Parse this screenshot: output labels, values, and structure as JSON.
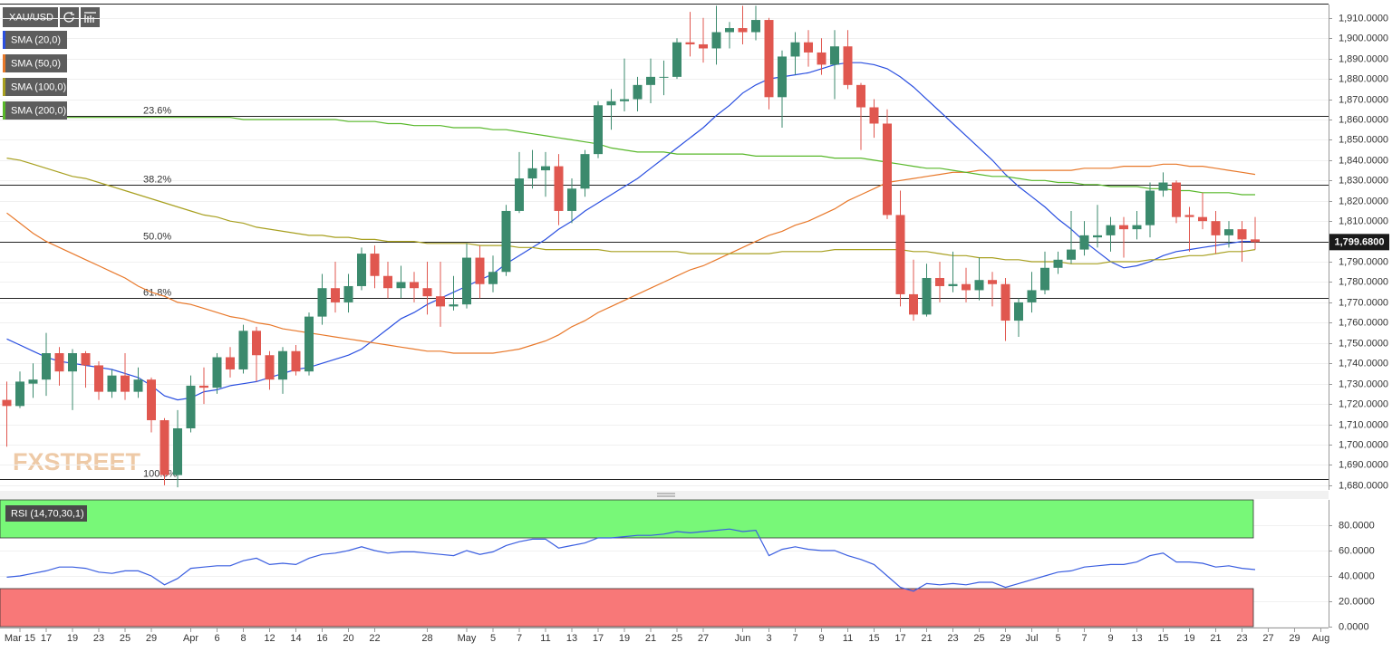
{
  "chart_data": [
    {
      "type": "candlestick",
      "title": "XAU/USD",
      "watermark": "FXSTREET",
      "up_color": "#3b8a6d",
      "down_color": "#e0574f",
      "grid": true,
      "ylim": [
        1677.7,
        1916.6
      ],
      "yticks": [
        {
          "value": 1680,
          "label": "1,680.0000"
        },
        {
          "value": 1690,
          "label": "1,690.0000"
        },
        {
          "value": 1700,
          "label": "1,700.0000"
        },
        {
          "value": 1710,
          "label": "1,710.0000"
        },
        {
          "value": 1720,
          "label": "1,720.0000"
        },
        {
          "value": 1730,
          "label": "1,730.0000"
        },
        {
          "value": 1740,
          "label": "1,740.0000"
        },
        {
          "value": 1750,
          "label": "1,750.0000"
        },
        {
          "value": 1760,
          "label": "1,760.0000"
        },
        {
          "value": 1770,
          "label": "1,770.0000"
        },
        {
          "value": 1780,
          "label": "1,780.0000"
        },
        {
          "value": 1790,
          "label": "1,790.0000"
        },
        {
          "value": 1800,
          "label": "1,800.0000"
        },
        {
          "value": 1810,
          "label": "1,810.0000"
        },
        {
          "value": 1820,
          "label": "1,820.0000"
        },
        {
          "value": 1830,
          "label": "1,830.0000"
        },
        {
          "value": 1840,
          "label": "1,840.0000"
        },
        {
          "value": 1850,
          "label": "1,850.0000"
        },
        {
          "value": 1860,
          "label": "1,860.0000"
        },
        {
          "value": 1870,
          "label": "1,870.0000"
        },
        {
          "value": 1880,
          "label": "1,880.0000"
        },
        {
          "value": 1890,
          "label": "1,890.0000"
        },
        {
          "value": 1900,
          "label": "1,900.0000"
        },
        {
          "value": 1910,
          "label": "1,910.0000"
        }
      ],
      "categories": [
        null,
        "Mar 15",
        null,
        "17",
        null,
        "19",
        null,
        "23",
        null,
        "25",
        null,
        "29",
        null,
        null,
        "Apr",
        null,
        "6",
        null,
        "8",
        null,
        "12",
        null,
        "14",
        null,
        "16",
        null,
        "20",
        null,
        "22",
        null,
        null,
        null,
        "28",
        null,
        null,
        "May",
        null,
        "5",
        null,
        "7",
        null,
        "11",
        null,
        "13",
        null,
        "17",
        null,
        "19",
        null,
        "21",
        null,
        "25",
        null,
        "27",
        null,
        null,
        "Jun",
        null,
        "3",
        null,
        "7",
        null,
        "9",
        null,
        "11",
        null,
        "15",
        null,
        "17",
        null,
        "21",
        null,
        "23",
        null,
        "25",
        null,
        "29",
        null,
        "Jul",
        null,
        "5",
        null,
        "7",
        null,
        "9",
        null,
        "13",
        null,
        "15",
        null,
        "19",
        null,
        "21",
        null,
        "23",
        null,
        "27",
        null,
        "29",
        null,
        "Aug"
      ],
      "open": [
        1722,
        1719,
        1730,
        1732,
        1745,
        1736,
        1745,
        1739,
        1726,
        1734,
        1726,
        1732,
        1712,
        1685,
        1708,
        1729,
        1728,
        1743,
        1737,
        1756,
        1744,
        1732,
        1746,
        1736,
        1763,
        1777,
        1770,
        1778,
        1794,
        1783,
        1777,
        1780,
        1777,
        1773,
        1768,
        1769,
        1792,
        1779,
        1785,
        1815,
        1831,
        1835,
        1837,
        1815,
        1826,
        1843,
        1867,
        1869,
        1870,
        1877,
        1881,
        1881,
        1898,
        1897,
        1895,
        1903,
        1905,
        1903,
        1909,
        1871,
        1891,
        1898,
        1893,
        1887,
        1896,
        1877,
        1866,
        1858,
        1813,
        1774,
        1764,
        1782,
        1778,
        1779,
        1776,
        1781,
        1779,
        1761,
        1770,
        1776,
        1787,
        1791,
        1796,
        1802,
        1803,
        1808,
        1806,
        1808,
        1825,
        1829,
        1813,
        1812,
        1810,
        1803,
        1806,
        1801,
        null,
        null,
        null,
        null,
        null
      ],
      "high": [
        1731,
        1736,
        1740,
        1755,
        1748,
        1747,
        1746,
        1741,
        1737,
        1745,
        1738,
        1733,
        1713,
        1717,
        1734,
        1738,
        1745,
        1748,
        1759,
        1758,
        1746,
        1748,
        1749,
        1765,
        1784,
        1790,
        1784,
        1797,
        1798,
        1790,
        1788,
        1785,
        1790,
        1790,
        1783,
        1799,
        1798,
        1793,
        1818,
        1844,
        1845,
        1844,
        1843,
        1831,
        1845,
        1869,
        1875,
        1890,
        1881,
        1890,
        1889,
        1900,
        1913,
        1910,
        1916,
        1908,
        1916,
        1916,
        1910,
        1894,
        1903,
        1904,
        1900,
        1904,
        1904,
        1878,
        1870,
        1865,
        1825,
        1791,
        1789,
        1790,
        1795,
        1787,
        1792,
        1785,
        1782,
        1772,
        1785,
        1795,
        1795,
        1815,
        1810,
        1818,
        1812,
        1812,
        1815,
        1829,
        1834,
        1830,
        1817,
        1824,
        1815,
        1810,
        1810,
        1812,
        null,
        null,
        null,
        null,
        null
      ],
      "low": [
        1699,
        1718,
        1723,
        1724,
        1729,
        1717,
        1728,
        1722,
        1723,
        1722,
        1723,
        1706,
        1680,
        1679,
        1706,
        1720,
        1725,
        1733,
        1735,
        1731,
        1727,
        1725,
        1734,
        1734,
        1759,
        1765,
        1765,
        1776,
        1777,
        1772,
        1772,
        1770,
        1764,
        1758,
        1766,
        1767,
        1772,
        1775,
        1783,
        1814,
        1826,
        1822,
        1808,
        1809,
        1822,
        1841,
        1855,
        1864,
        1864,
        1868,
        1872,
        1880,
        1891,
        1888,
        1887,
        1895,
        1897,
        1899,
        1865,
        1856,
        1882,
        1886,
        1882,
        1870,
        1875,
        1845,
        1851,
        1811,
        1768,
        1761,
        1763,
        1770,
        1775,
        1770,
        1771,
        1768,
        1751,
        1753,
        1765,
        1774,
        1784,
        1789,
        1793,
        1797,
        1795,
        1792,
        1801,
        1802,
        1822,
        1809,
        1795,
        1806,
        1794,
        1797,
        1790,
        1796,
        null,
        null,
        null,
        null,
        null
      ],
      "close": [
        1719,
        1731,
        1732,
        1745,
        1736,
        1745,
        1739,
        1726,
        1734,
        1726,
        1732,
        1712,
        1685,
        1708,
        1729,
        1728,
        1743,
        1737,
        1756,
        1744,
        1732,
        1746,
        1736,
        1763,
        1777,
        1770,
        1778,
        1794,
        1783,
        1777,
        1780,
        1777,
        1773,
        1768,
        1769,
        1792,
        1779,
        1785,
        1815,
        1831,
        1836,
        1837,
        1815,
        1826,
        1843,
        1867,
        1869,
        1870,
        1877,
        1881,
        1881,
        1898,
        1897,
        1895,
        1903,
        1905,
        1903,
        1909,
        1871,
        1891,
        1898,
        1893,
        1887,
        1896,
        1877,
        1866,
        1858,
        1813,
        1774,
        1764,
        1782,
        1778,
        1779,
        1776,
        1781,
        1779,
        1761,
        1770,
        1776,
        1787,
        1791,
        1796,
        1803,
        1803,
        1808,
        1806,
        1808,
        1825,
        1829,
        1812,
        1812,
        1810,
        1803,
        1806,
        1801,
        1799.68,
        null,
        null,
        null,
        null,
        null
      ],
      "series": [
        {
          "name": "SMA (20,0)",
          "color": "#2a4fe0",
          "values": [
            1752,
            1749,
            1746,
            1743,
            1741,
            1740,
            1739,
            1738,
            1737,
            1735,
            1733,
            1729,
            1724,
            1722,
            1723,
            1726,
            1727,
            1729,
            1730,
            1731,
            1733,
            1735,
            1737,
            1738,
            1740,
            1742,
            1744,
            1747,
            1752,
            1757,
            1762,
            1765,
            1769,
            1772,
            1775,
            1778,
            1781,
            1784,
            1789,
            1793,
            1797,
            1801,
            1806,
            1810,
            1815,
            1819,
            1823,
            1827,
            1831,
            1836,
            1841,
            1846,
            1851,
            1856,
            1862,
            1867,
            1873,
            1877,
            1880,
            1881,
            1882,
            1883,
            1885,
            1887,
            1888,
            1888,
            1887,
            1885,
            1881,
            1876,
            1870,
            1864,
            1858,
            1852,
            1846,
            1840,
            1833,
            1827,
            1822,
            1817,
            1811,
            1806,
            1800,
            1795,
            1790,
            1787,
            1788,
            1790,
            1793,
            1795,
            1796,
            1797,
            1798,
            1799,
            1800,
            1800,
            null,
            null,
            null,
            null,
            null
          ]
        },
        {
          "name": "SMA (50,0)",
          "color": "#e8782a",
          "values": [
            1814,
            1809,
            1804,
            1800,
            1797,
            1794,
            1791,
            1788,
            1785,
            1782,
            1778,
            1775,
            1773,
            1770,
            1769,
            1767,
            1765,
            1763,
            1762,
            1760,
            1759,
            1757,
            1756,
            1755,
            1754,
            1753,
            1752,
            1751,
            1750,
            1749,
            1748,
            1747,
            1746,
            1746,
            1745,
            1745,
            1745,
            1745,
            1746,
            1747,
            1749,
            1751,
            1754,
            1758,
            1761,
            1765,
            1768,
            1771,
            1774,
            1777,
            1780,
            1783,
            1786,
            1788,
            1791,
            1794,
            1797,
            1800,
            1803,
            1805,
            1808,
            1810,
            1813,
            1816,
            1820,
            1823,
            1826,
            1829,
            1830,
            1831,
            1832,
            1833,
            1834,
            1834,
            1835,
            1835,
            1835,
            1835,
            1835,
            1835,
            1835,
            1835,
            1836,
            1836,
            1836,
            1837,
            1837,
            1837,
            1838,
            1838,
            1837,
            1837,
            1836,
            1835,
            1834,
            1833,
            null,
            null,
            null,
            null,
            null
          ]
        },
        {
          "name": "SMA (100,0)",
          "color": "#a8a020",
          "values": [
            1841,
            1840,
            1838,
            1836,
            1834,
            1832,
            1831,
            1829,
            1827,
            1825,
            1823,
            1821,
            1819,
            1817,
            1815,
            1813,
            1812,
            1810,
            1809,
            1807,
            1806,
            1805,
            1804,
            1803,
            1803,
            1802,
            1802,
            1801,
            1801,
            1800,
            1800,
            1800,
            1799,
            1799,
            1799,
            1799,
            1798,
            1798,
            1798,
            1797,
            1797,
            1796,
            1796,
            1796,
            1796,
            1796,
            1795,
            1795,
            1795,
            1795,
            1795,
            1795,
            1794,
            1794,
            1794,
            1794,
            1794,
            1794,
            1794,
            1795,
            1795,
            1795,
            1795,
            1796,
            1796,
            1796,
            1796,
            1796,
            1796,
            1795,
            1795,
            1794,
            1793,
            1793,
            1792,
            1792,
            1791,
            1791,
            1790,
            1790,
            1790,
            1789,
            1789,
            1789,
            1790,
            1790,
            1790,
            1791,
            1791,
            1792,
            1793,
            1793,
            1794,
            1795,
            1795,
            1796,
            null,
            null,
            null,
            null,
            null
          ]
        },
        {
          "name": "SMA (200,0)",
          "color": "#58b82a",
          "values": [
            1861,
            1861,
            1861,
            1861,
            1861,
            1861,
            1861,
            1861,
            1861,
            1861,
            1861,
            1861,
            1861,
            1861,
            1861,
            1861,
            1861,
            1861,
            1860,
            1860,
            1860,
            1860,
            1860,
            1860,
            1860,
            1860,
            1859,
            1859,
            1859,
            1858,
            1858,
            1857,
            1857,
            1857,
            1856,
            1856,
            1856,
            1855,
            1855,
            1854,
            1853,
            1852,
            1851,
            1850,
            1849,
            1848,
            1846,
            1845,
            1844,
            1844,
            1844,
            1843,
            1843,
            1843,
            1843,
            1843,
            1843,
            1842,
            1842,
            1842,
            1842,
            1842,
            1842,
            1841,
            1841,
            1841,
            1840,
            1839,
            1838,
            1837,
            1836,
            1836,
            1835,
            1834,
            1833,
            1832,
            1832,
            1831,
            1830,
            1830,
            1829,
            1829,
            1828,
            1828,
            1827,
            1827,
            1827,
            1826,
            1826,
            1825,
            1825,
            1824,
            1824,
            1824,
            1823,
            1823,
            null,
            null,
            null,
            null,
            null
          ]
        }
      ],
      "fib_levels": [
        {
          "label": "23.6%",
          "value": 1862
        },
        {
          "label": "38.2%",
          "value": 1828
        },
        {
          "label": "50.0%",
          "value": 1800
        },
        {
          "label": "61.8%",
          "value": 1772
        },
        {
          "label": "100.0%",
          "value": 1683
        }
      ],
      "last_price": {
        "value": 1799.68,
        "label": "1,799.6800"
      }
    },
    {
      "type": "line",
      "label": "RSI (14,70,30,1)",
      "color": "#3a5ee0",
      "grid": true,
      "ylim": [
        0,
        100
      ],
      "yticks": [
        {
          "value": 0,
          "label": "0.0000"
        },
        {
          "value": 20,
          "label": "20.0000"
        },
        {
          "value": 40,
          "label": "40.0000"
        },
        {
          "value": 60,
          "label": "60.0000"
        },
        {
          "value": 80,
          "label": "80.0000"
        }
      ],
      "upper_band": 70,
      "lower_band": 30,
      "upper_color": "#78f878",
      "lower_color": "#f87878",
      "values": [
        39,
        40,
        42,
        44,
        47,
        47,
        46,
        43,
        42,
        44,
        44,
        40,
        33,
        38,
        46,
        47,
        48,
        48,
        52,
        54,
        49,
        50,
        49,
        54,
        57,
        58,
        60,
        63,
        60,
        58,
        59,
        59,
        58,
        57,
        56,
        60,
        57,
        59,
        64,
        67,
        69,
        69,
        62,
        64,
        66,
        70,
        70,
        71,
        72,
        72,
        73,
        75,
        74,
        75,
        76,
        77,
        75,
        76,
        56,
        61,
        63,
        61,
        60,
        60,
        56,
        53,
        49,
        40,
        31,
        28,
        34,
        33,
        34,
        33,
        35,
        35,
        31,
        34,
        37,
        40,
        43,
        44,
        47,
        48,
        49,
        49,
        51,
        56,
        58,
        51,
        51,
        50,
        47,
        48,
        46,
        45,
        null,
        null,
        null,
        null,
        null
      ]
    }
  ]
}
